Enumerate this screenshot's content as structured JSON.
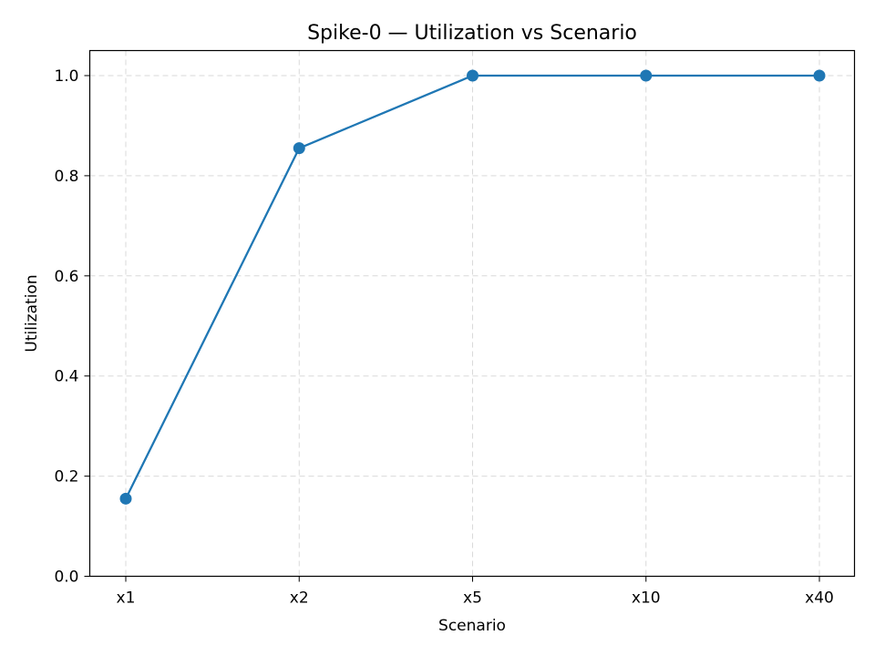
{
  "chart_data": {
    "type": "line",
    "title": "Spike-0 — Utilization vs Scenario",
    "xlabel": "Scenario",
    "ylabel": "Utilization",
    "categories": [
      "x1",
      "x2",
      "x5",
      "x10",
      "x40"
    ],
    "series": [
      {
        "values": [
          0.155,
          0.855,
          1.0,
          1.0,
          1.0
        ],
        "color": "#1f77b4",
        "marker": "circle"
      }
    ],
    "ylim": [
      0.0,
      1.05
    ],
    "yticks": [
      0.0,
      0.2,
      0.4,
      0.6,
      0.8,
      1.0
    ],
    "ytick_labels": [
      "0.0",
      "0.2",
      "0.4",
      "0.6",
      "0.8",
      "1.0"
    ],
    "grid": true,
    "grid_style": "dashed"
  }
}
